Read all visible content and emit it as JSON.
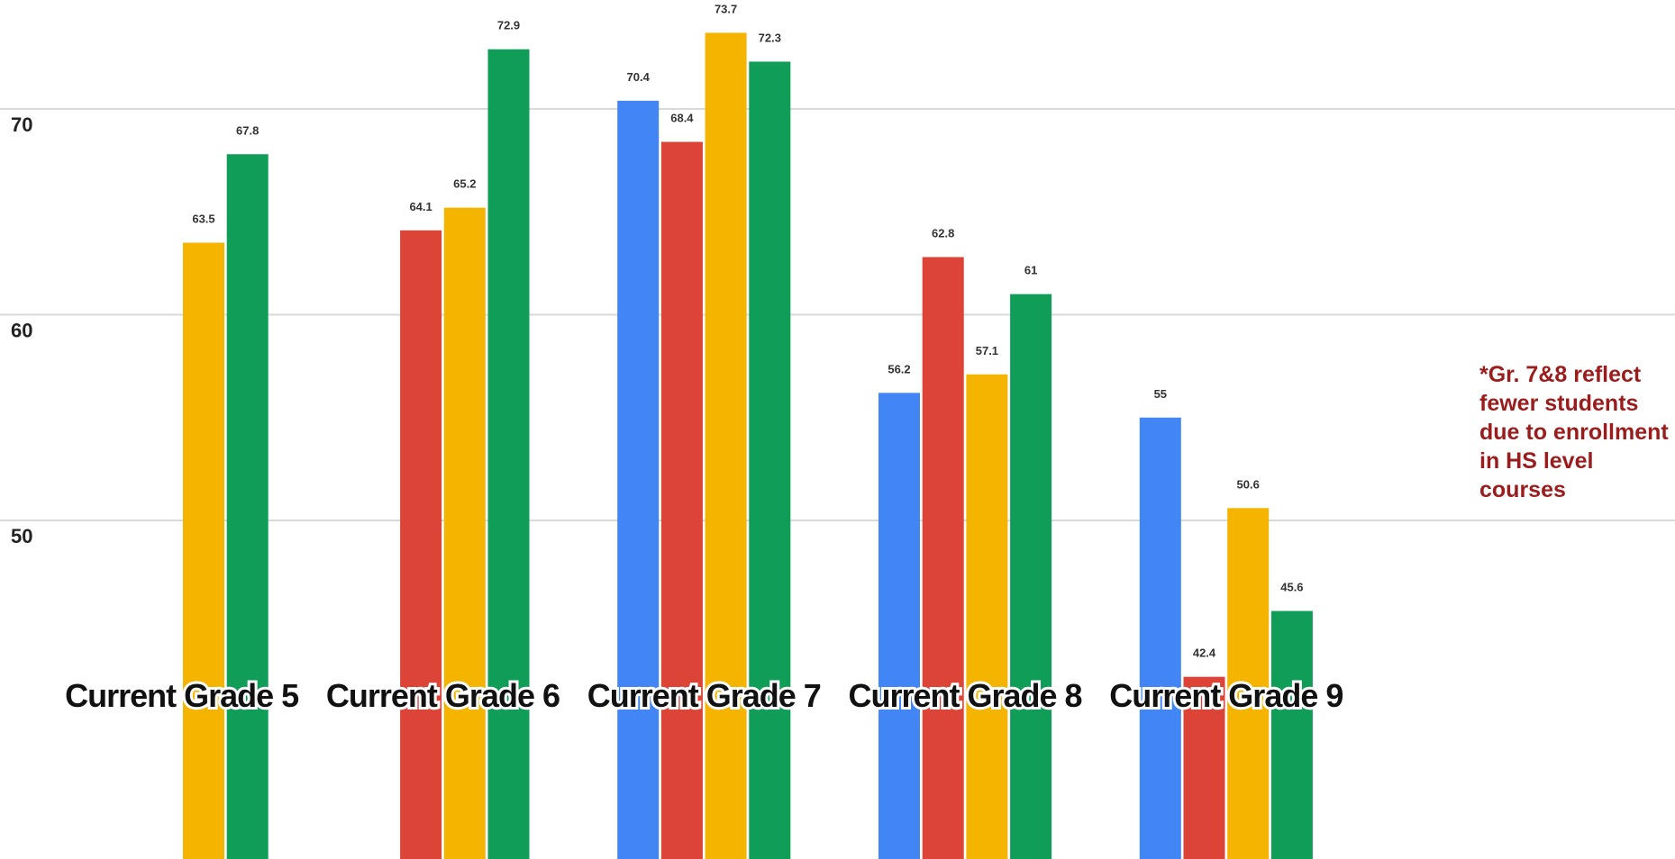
{
  "chart_data": {
    "type": "bar",
    "categories": [
      "Current Grade 5",
      "Current Grade 6",
      "Current Grade 7",
      "Current Grade 8",
      "Current Grade 9"
    ],
    "series": [
      {
        "color": "#4285f4",
        "values": [
          null,
          null,
          70.4,
          56.2,
          55
        ]
      },
      {
        "color": "#db4437",
        "values": [
          null,
          64.1,
          68.4,
          62.8,
          42.4
        ]
      },
      {
        "color": "#f4b400",
        "values": [
          63.5,
          65.2,
          73.7,
          57.1,
          50.6
        ]
      },
      {
        "color": "#0f9d58",
        "values": [
          67.8,
          72.9,
          72.3,
          61,
          45.6
        ]
      }
    ],
    "value_labels": [
      [
        null,
        null,
        "70.4",
        "56.2",
        "55"
      ],
      [
        null,
        "64.1",
        "68.4",
        "62.8",
        "42.4"
      ],
      [
        "63.5",
        "65.2",
        "73.7",
        "57.1",
        "50.6"
      ],
      [
        "67.8",
        "72.9",
        "72.3",
        "61",
        "45.6"
      ]
    ],
    "y_ticks": [
      50,
      60,
      70
    ],
    "ylim": [
      40.5,
      76
    ],
    "grid": true,
    "title": "",
    "xlabel": "",
    "ylabel": ""
  },
  "annotation": "*Gr. 7&8 reflect fewer students due to enrollment in HS level courses",
  "colors": {
    "annotation": "#9b1c1c",
    "grid": "#d9d9d9"
  }
}
